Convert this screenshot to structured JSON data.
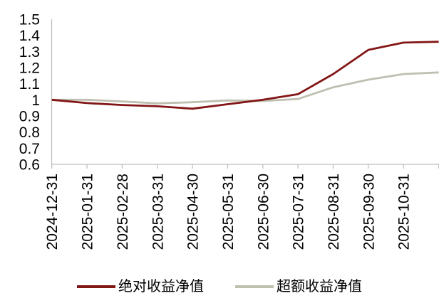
{
  "chart_data": {
    "type": "line",
    "title": "",
    "xlabel": "",
    "ylabel": "",
    "grid": false,
    "legend_position": "bottom",
    "ylim": [
      0.6,
      1.5
    ],
    "yticks": [
      "1.5",
      "1.4",
      "1.3",
      "1.2",
      "1.1",
      "1",
      "0.9",
      "0.8",
      "0.7",
      "0.6"
    ],
    "x": [
      "2024-12-31",
      "2025-01-31",
      "2025-02-28",
      "2025-03-31",
      "2025-04-30",
      "2025-05-31",
      "2025-06-30",
      "2025-07-31",
      "2025-08-31",
      "2025-09-30",
      "2025-10-31",
      ""
    ],
    "series": [
      {
        "name": "绝对收益净值",
        "color": "#831616",
        "values": [
          1.0,
          0.98,
          0.968,
          0.96,
          0.945,
          0.973,
          1.0,
          1.035,
          1.16,
          1.31,
          1.355,
          1.36
        ]
      },
      {
        "name": "超额收益净值",
        "color": "#bfc0b1",
        "values": [
          1.0,
          1.0,
          0.99,
          0.978,
          0.985,
          0.996,
          0.993,
          1.005,
          1.078,
          1.125,
          1.16,
          1.17
        ]
      }
    ],
    "axis_color": "#bfbfbf"
  },
  "legend": {
    "items": [
      {
        "label": "绝对收益净值"
      },
      {
        "label": "超额收益净值"
      }
    ]
  }
}
